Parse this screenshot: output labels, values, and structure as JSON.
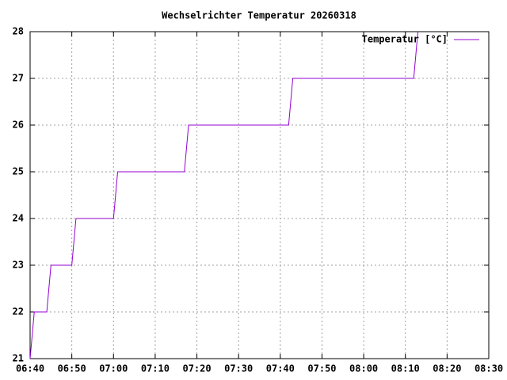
{
  "chart_data": {
    "type": "line",
    "title": "Wechselrichter Temperatur 20260318",
    "x": [
      "06:40",
      "06:41",
      "06:44",
      "06:45",
      "06:50",
      "06:51",
      "07:00",
      "07:01",
      "07:17",
      "07:18",
      "07:42",
      "07:43",
      "08:12",
      "08:13"
    ],
    "series": [
      {
        "name": "Temperatur [°C]",
        "color": "#9400d3",
        "values": [
          21,
          22,
          22,
          23,
          23,
          24,
          24,
          25,
          25,
          26,
          26,
          27,
          27,
          28
        ]
      }
    ],
    "xlim": [
      "06:40",
      "08:30"
    ],
    "xticks": [
      "06:40",
      "06:50",
      "07:00",
      "07:10",
      "07:20",
      "07:30",
      "07:40",
      "07:50",
      "08:00",
      "08:10",
      "08:20",
      "08:30"
    ],
    "ylim": [
      21,
      28
    ],
    "yticks": [
      21,
      22,
      23,
      24,
      25,
      26,
      27,
      28
    ],
    "grid": true,
    "legend": "top-right"
  }
}
